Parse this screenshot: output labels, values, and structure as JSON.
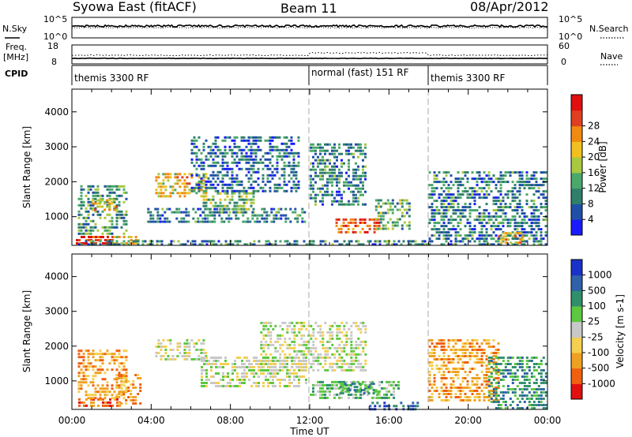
{
  "header": {
    "radar": "Syowa East (fitACF)",
    "beam": "Beam 11",
    "date": "08/Apr/2012"
  },
  "strips": {
    "nsky_label": "N.Sky",
    "nsky_ticks": [
      "10^5",
      "10^0"
    ],
    "nsearch_label": "N.Search",
    "nsearch_ticks": [
      "10^5",
      "10^0"
    ],
    "freq_label_1": "Freq.",
    "freq_label_2": "[MHz]",
    "freq_ticks": [
      "18",
      "8"
    ],
    "nave_label": "Nave",
    "nave_ticks": [
      "60",
      "0"
    ],
    "cpid_label": "CPID",
    "cpid_segments": [
      {
        "label": "themis 3300 RF",
        "start_h": 0,
        "end_h": 12
      },
      {
        "label": "normal (fast) 151 RF",
        "start_h": 12,
        "end_h": 18
      },
      {
        "label": "themis 3300 RF",
        "start_h": 18,
        "end_h": 24
      }
    ]
  },
  "chart_data": [
    {
      "type": "heatmap",
      "panel": "power",
      "xlabel": "Time UT",
      "ylabel": "Slant Range [km]",
      "x_range_h": [
        0,
        24
      ],
      "x_ticks": [
        "00:00",
        "04:00",
        "08:00",
        "12:00",
        "16:00",
        "20:00",
        "00:00"
      ],
      "ylim": [
        180,
        4650
      ],
      "y_ticks": [
        1000,
        2000,
        3000,
        4000
      ],
      "y_tick_labels": [
        "1000",
        "2000",
        "3000",
        "4000"
      ],
      "colorbar": {
        "label": "Power [dB]",
        "min": 0,
        "max": 32,
        "tick_labels": [
          "4",
          "8",
          "12",
          "16",
          "20",
          "24",
          "28"
        ],
        "colors": [
          "#1a1aff",
          "#1f4fa8",
          "#2f7f6a",
          "#4aa86a",
          "#a8c840",
          "#f0c020",
          "#f08a10",
          "#e04020",
          "#e01010"
        ]
      },
      "echo_regions": [
        {
          "t0": 0.2,
          "t1": 2.1,
          "r0": 250,
          "r1": 450,
          "v": 30
        },
        {
          "t0": 2.1,
          "t1": 3.4,
          "r0": 250,
          "r1": 450,
          "v": 20
        },
        {
          "t0": 0.3,
          "t1": 2.8,
          "r0": 500,
          "r1": 1900,
          "v": 10
        },
        {
          "t0": 1.0,
          "t1": 2.2,
          "r0": 1150,
          "r1": 1500,
          "v": 22
        },
        {
          "t0": 4.2,
          "t1": 6.8,
          "r0": 1550,
          "r1": 2250,
          "v": 20
        },
        {
          "t0": 6.6,
          "t1": 9.2,
          "r0": 1150,
          "r1": 1700,
          "v": 13
        },
        {
          "t0": 3.8,
          "t1": 11.8,
          "r0": 850,
          "r1": 1250,
          "v": 8
        },
        {
          "t0": 6.0,
          "t1": 11.5,
          "r0": 1700,
          "r1": 3300,
          "v": 6
        },
        {
          "t0": 12.0,
          "t1": 14.8,
          "r0": 1300,
          "r1": 3100,
          "v": 8
        },
        {
          "t0": 13.3,
          "t1": 15.5,
          "r0": 550,
          "r1": 950,
          "v": 28
        },
        {
          "t0": 15.3,
          "t1": 17.0,
          "r0": 600,
          "r1": 1500,
          "v": 12
        },
        {
          "t0": 0.3,
          "t1": 23.9,
          "r0": 200,
          "r1": 330,
          "v": 8
        },
        {
          "t0": 18.0,
          "t1": 23.9,
          "r0": 400,
          "r1": 2300,
          "v": 8
        },
        {
          "t0": 21.5,
          "t1": 22.8,
          "r0": 280,
          "r1": 560,
          "v": 22
        }
      ]
    },
    {
      "type": "heatmap",
      "panel": "velocity",
      "xlabel": "Time UT",
      "ylabel": "Slant Range [km]",
      "x_range_h": [
        0,
        24
      ],
      "x_ticks": [
        "00:00",
        "04:00",
        "08:00",
        "12:00",
        "16:00",
        "20:00",
        "00:00"
      ],
      "ylim": [
        180,
        4650
      ],
      "y_ticks": [
        1000,
        2000,
        3000,
        4000
      ],
      "y_tick_labels": [
        "1000",
        "2000",
        "3000",
        "4000"
      ],
      "colorbar": {
        "label": "Velocity [m s-1]",
        "tick_labels": [
          "-1000",
          "-500",
          "-100",
          "-25",
          "25",
          "100",
          "500",
          "1000"
        ],
        "colors": [
          "#e01010",
          "#f06010",
          "#f0a020",
          "#f4cf50",
          "#c8c8c8",
          "#5cc840",
          "#2f8f6a",
          "#2f62a8",
          "#1a32c8"
        ]
      },
      "echo_regions": [
        {
          "t0": 0.2,
          "t1": 2.4,
          "r0": 250,
          "r1": 500,
          "v": 1
        },
        {
          "t0": 0.3,
          "t1": 2.8,
          "r0": 500,
          "r1": 1900,
          "v": 2
        },
        {
          "t0": 2.2,
          "t1": 3.5,
          "r0": 300,
          "r1": 1200,
          "v": 2
        },
        {
          "t0": 4.2,
          "t1": 6.8,
          "r0": 1600,
          "r1": 2200,
          "v": 4
        },
        {
          "t0": 6.5,
          "t1": 11.8,
          "r0": 850,
          "r1": 1700,
          "v": 4
        },
        {
          "t0": 9.5,
          "t1": 14.8,
          "r0": 1300,
          "r1": 2700,
          "v": 4
        },
        {
          "t0": 12.0,
          "t1": 16.5,
          "r0": 500,
          "r1": 1000,
          "v": 5
        },
        {
          "t0": 13.5,
          "t1": 15.5,
          "r0": 600,
          "r1": 950,
          "v": 6
        },
        {
          "t0": 15.0,
          "t1": 17.5,
          "r0": 200,
          "r1": 400,
          "v": 7
        },
        {
          "t0": 18.0,
          "t1": 21.5,
          "r0": 400,
          "r1": 2200,
          "v": 2
        },
        {
          "t0": 21.0,
          "t1": 23.9,
          "r0": 200,
          "r1": 1700,
          "v": 6
        }
      ]
    }
  ]
}
